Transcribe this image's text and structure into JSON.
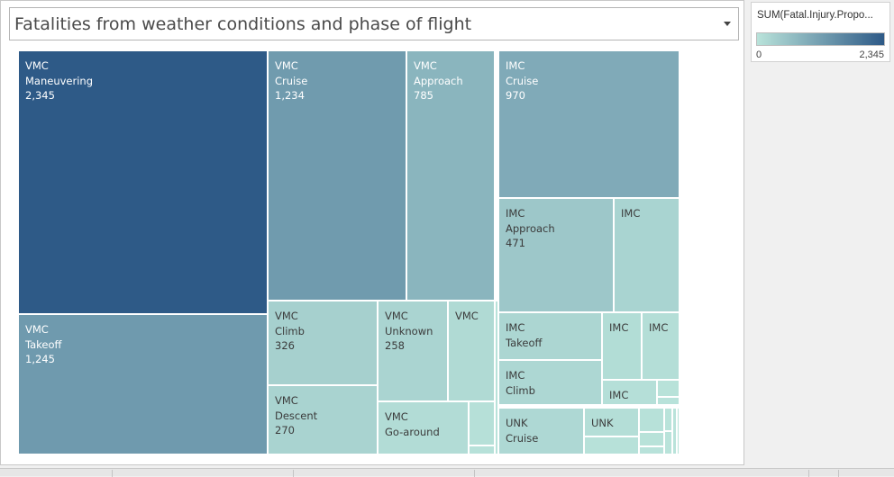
{
  "title": "Fatalities from weather conditions and phase of flight",
  "legend": {
    "title": "SUM(Fatal.Injury.Propo...",
    "min_label": "0",
    "max_label": "2,345",
    "color_low": "#b9e3da",
    "color_high": "#2e5a87"
  },
  "chart_data": {
    "type": "treemap",
    "title": "Fatalities from weather conditions and phase of flight",
    "color_legend": "SUM(Fatal.Injury.Propo...",
    "color_range": [
      0,
      2345
    ],
    "tiles": [
      {
        "condition": "VMC",
        "phase": "Maneuvering",
        "value": 2345,
        "value_label": "2,345"
      },
      {
        "condition": "VMC",
        "phase": "Takeoff",
        "value": 1245,
        "value_label": "1,245"
      },
      {
        "condition": "VMC",
        "phase": "Cruise",
        "value": 1234,
        "value_label": "1,234"
      },
      {
        "condition": "VMC",
        "phase": "Approach",
        "value": 785,
        "value_label": "785"
      },
      {
        "condition": "VMC",
        "phase": "Climb",
        "value": 326,
        "value_label": "326"
      },
      {
        "condition": "VMC",
        "phase": "Descent",
        "value": 270,
        "value_label": "270"
      },
      {
        "condition": "VMC",
        "phase": "Unknown",
        "value": 258,
        "value_label": "258"
      },
      {
        "condition": "VMC",
        "phase": "",
        "value": 160,
        "value_label": ""
      },
      {
        "condition": "VMC",
        "phase": "Go-around",
        "value": 120,
        "value_label": ""
      },
      {
        "condition": "VMC",
        "phase": "",
        "value": 50,
        "value_label": ""
      },
      {
        "condition": "VMC",
        "phase": "",
        "value": 36,
        "value_label": ""
      },
      {
        "condition": "VMC",
        "phase": "",
        "value": 14,
        "value_label": ""
      },
      {
        "condition": "IMC",
        "phase": "Cruise",
        "value": 970,
        "value_label": "970"
      },
      {
        "condition": "IMC",
        "phase": "Approach",
        "value": 471,
        "value_label": "471"
      },
      {
        "condition": "IMC",
        "phase": "",
        "value": 265,
        "value_label": ""
      },
      {
        "condition": "IMC",
        "phase": "Takeoff",
        "value": 215,
        "value_label": ""
      },
      {
        "condition": "IMC",
        "phase": "Climb",
        "value": 205,
        "value_label": ""
      },
      {
        "condition": "IMC",
        "phase": "",
        "value": 110,
        "value_label": ""
      },
      {
        "condition": "IMC",
        "phase": "",
        "value": 90,
        "value_label": ""
      },
      {
        "condition": "IMC",
        "phase": "",
        "value": 70,
        "value_label": ""
      },
      {
        "condition": "IMC",
        "phase": "",
        "value": 20,
        "value_label": ""
      },
      {
        "condition": "IMC",
        "phase": "",
        "value": 10,
        "value_label": ""
      },
      {
        "condition": "IMC",
        "phase": "",
        "value": 8,
        "value_label": ""
      },
      {
        "condition": "IMC",
        "phase": "",
        "value": 5,
        "value_label": ""
      },
      {
        "condition": "UNK",
        "phase": "Cruise",
        "value": 180,
        "value_label": ""
      },
      {
        "condition": "UNK",
        "phase": "",
        "value": 90,
        "value_label": ""
      },
      {
        "condition": "UNK",
        "phase": "",
        "value": 40,
        "value_label": ""
      },
      {
        "condition": "UNK",
        "phase": "",
        "value": 26,
        "value_label": ""
      },
      {
        "condition": "UNK",
        "phase": "",
        "value": 20,
        "value_label": ""
      },
      {
        "condition": "UNK",
        "phase": "",
        "value": 12,
        "value_label": ""
      },
      {
        "condition": "UNK",
        "phase": "",
        "value": 8,
        "value_label": ""
      },
      {
        "condition": "UNK",
        "phase": "",
        "value": 6,
        "value_label": ""
      },
      {
        "condition": "UNK",
        "phase": "",
        "value": 4,
        "value_label": ""
      },
      {
        "condition": "UNK",
        "phase": "",
        "value": 3,
        "value_label": ""
      }
    ]
  }
}
